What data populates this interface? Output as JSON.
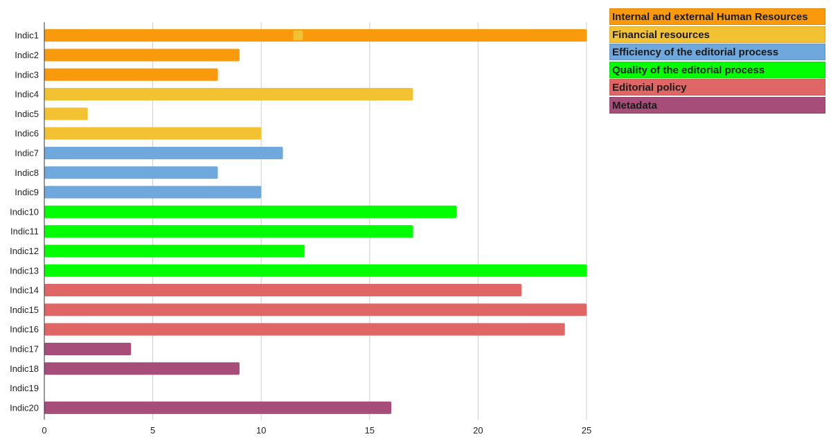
{
  "chart_data": {
    "type": "bar",
    "orientation": "horizontal",
    "categories": [
      "Indic1",
      "Indic2",
      "Indic3",
      "Indic4",
      "Indic5",
      "Indic6",
      "Indic7",
      "Indic8",
      "Indic9",
      "Indic10",
      "Indic11",
      "Indic12",
      "Indic13",
      "Indic14",
      "Indic15",
      "Indic16",
      "Indic17",
      "Indic18",
      "Indic19",
      "Indic20"
    ],
    "values": [
      25,
      9,
      8,
      17,
      2,
      10,
      11,
      8,
      10,
      19,
      17,
      12,
      25,
      22,
      25,
      24,
      4,
      9,
      0,
      16
    ],
    "groups": [
      0,
      0,
      0,
      1,
      1,
      1,
      2,
      2,
      2,
      3,
      3,
      3,
      3,
      4,
      4,
      4,
      5,
      5,
      5,
      5
    ],
    "xlim": [
      0,
      25
    ],
    "xticks": [
      0,
      5,
      10,
      15,
      20,
      25
    ],
    "grid": true,
    "legend_position": "top-right",
    "marker": {
      "category": "Indic1",
      "value": 11.7,
      "color": "#f2c232"
    },
    "legend": [
      {
        "label": "Internal and external Human Resources",
        "color": "#f89a0b"
      },
      {
        "label": "Financial resources",
        "color": "#f2c232"
      },
      {
        "label": "Efficiency of the editorial process",
        "color": "#6fa8dc"
      },
      {
        "label": "Quality of the editorial process",
        "color": "#00ff00"
      },
      {
        "label": "Editorial policy",
        "color": "#e06666"
      },
      {
        "label": "Metadata",
        "color": "#a64d79"
      }
    ]
  }
}
